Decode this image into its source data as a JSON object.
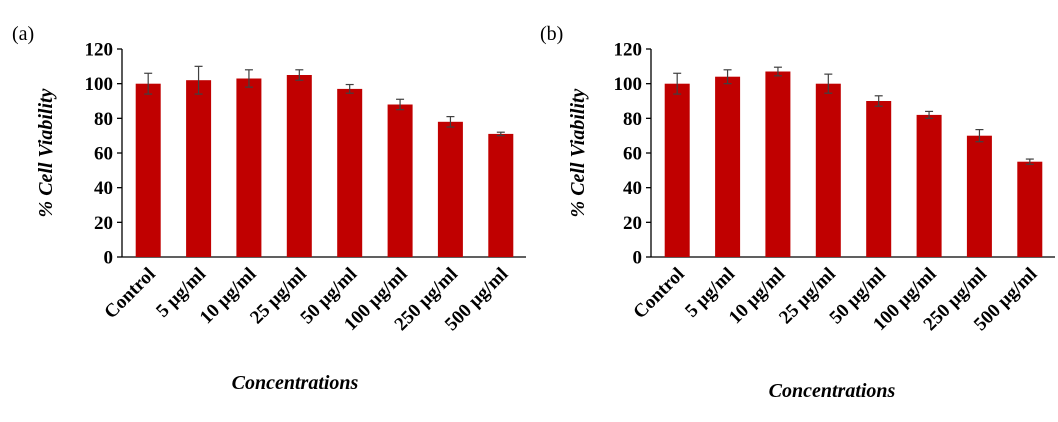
{
  "chart_data": [
    {
      "type": "bar",
      "panel_label": "(a)",
      "xlabel": "Concentrations",
      "ylabel": "% Cell Viability",
      "ylim": [
        0,
        120
      ],
      "yticks": [
        0,
        20,
        40,
        60,
        80,
        100,
        120
      ],
      "categories": [
        "Control",
        "5 μg/ml",
        "10 μg/ml",
        "25 μg/ml",
        "50 μg/ml",
        "100 μg/ml",
        "250 μg/ml",
        "500 μg/ml"
      ],
      "values": [
        100,
        102,
        103,
        105,
        97,
        88,
        78,
        71
      ],
      "errors": [
        6,
        8,
        5,
        3,
        2.5,
        3,
        3,
        1
      ],
      "color": "#c00000"
    },
    {
      "type": "bar",
      "panel_label": "(b)",
      "xlabel": "Concentrations",
      "ylabel": "% Cell Viability",
      "ylim": [
        0,
        120
      ],
      "yticks": [
        0,
        20,
        40,
        60,
        80,
        100,
        120
      ],
      "categories": [
        "Control",
        "5 μg/ml",
        "10 μg/ml",
        "25 μg/ml",
        "50 μg/ml",
        "100 μg/ml",
        "250 μg/ml",
        "500 μg/ml"
      ],
      "values": [
        100,
        104,
        107,
        100,
        90,
        82,
        70,
        55
      ],
      "errors": [
        6,
        4,
        2.5,
        5.5,
        3,
        2,
        3.5,
        1.5
      ],
      "color": "#c00000"
    }
  ]
}
